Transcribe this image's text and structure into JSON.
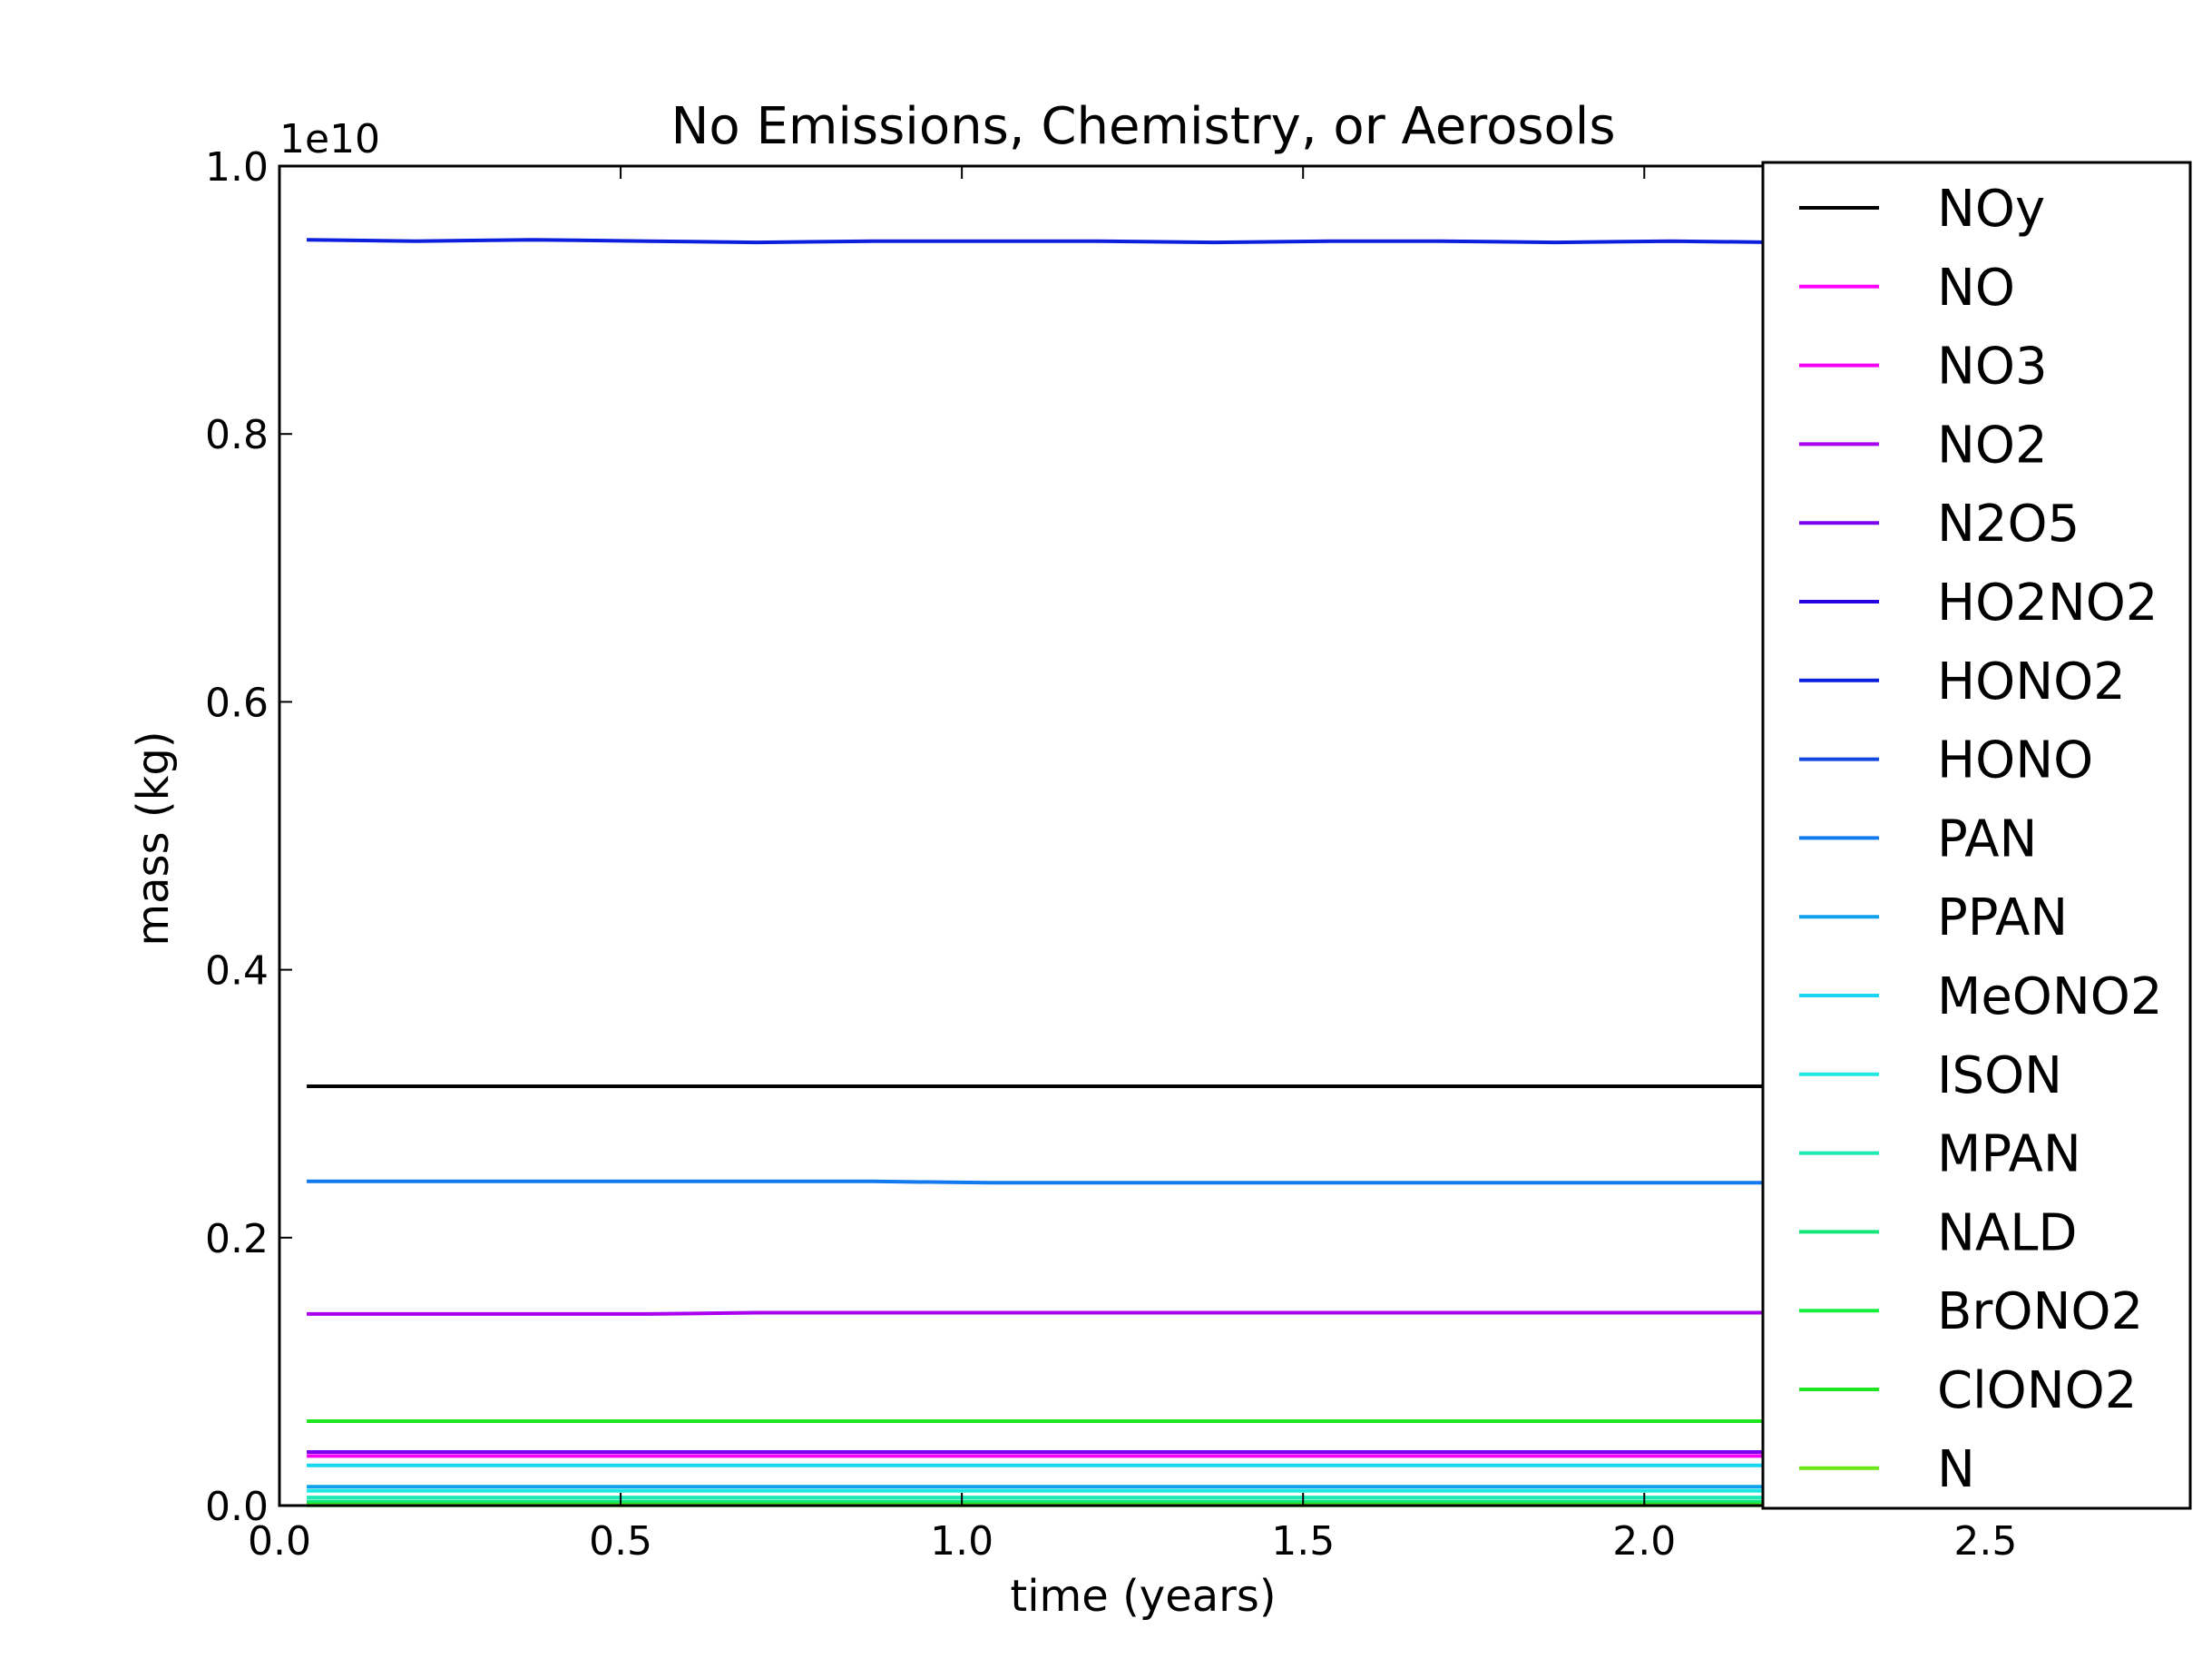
{
  "chart_data": {
    "type": "line",
    "title": "No Emissions, Chemistry, or Aerosols",
    "xlabel": "time (years)",
    "ylabel": "mass (kg)",
    "y_offset_label": "1e10",
    "xlim": [
      0.0,
      2.8
    ],
    "ylim": [
      0.0,
      1.0
    ],
    "grid": false,
    "legend_position": "upper-right",
    "x_ticks": [
      "0.0",
      "0.5",
      "1.0",
      "1.5",
      "2.0",
      "2.5"
    ],
    "y_ticks": [
      "0.0",
      "0.2",
      "0.4",
      "0.6",
      "0.8",
      "1.0"
    ],
    "x": [
      0.04,
      0.2,
      0.37,
      0.54,
      0.7,
      0.87,
      1.04,
      1.2,
      1.37,
      1.54,
      1.7,
      1.87,
      2.04,
      2.2
    ],
    "series": [
      {
        "name": "NOy",
        "color": "#000000",
        "values": [
          0.313,
          0.313,
          0.313,
          0.313,
          0.313,
          0.313,
          0.313,
          0.313,
          0.313,
          0.313,
          0.313,
          0.313,
          0.313,
          0.313
        ]
      },
      {
        "name": "NO",
        "color": "#ff00ff",
        "values": [
          0.0005,
          0.0005,
          0.0005,
          0.0005,
          0.0005,
          0.0005,
          0.0005,
          0.0005,
          0.0005,
          0.0005,
          0.0005,
          0.0005,
          0.0005,
          0.0005
        ]
      },
      {
        "name": "NO3",
        "color": "#f400f7",
        "values": [
          0.037,
          0.037,
          0.037,
          0.037,
          0.037,
          0.037,
          0.037,
          0.037,
          0.037,
          0.037,
          0.037,
          0.037,
          0.037,
          0.037
        ]
      },
      {
        "name": "NO2",
        "color": "#aa00ee",
        "values": [
          0.143,
          0.143,
          0.143,
          0.143,
          0.144,
          0.144,
          0.144,
          0.144,
          0.144,
          0.144,
          0.144,
          0.144,
          0.144,
          0.144
        ]
      },
      {
        "name": "N2O5",
        "color": "#7a00ee",
        "values": [
          0.04,
          0.04,
          0.04,
          0.04,
          0.04,
          0.04,
          0.04,
          0.04,
          0.04,
          0.04,
          0.04,
          0.04,
          0.04,
          0.04
        ]
      },
      {
        "name": "HO2NO2",
        "color": "#2800e6",
        "values": [
          0.002,
          0.002,
          0.002,
          0.002,
          0.002,
          0.002,
          0.002,
          0.002,
          0.002,
          0.002,
          0.002,
          0.002,
          0.002,
          0.002
        ]
      },
      {
        "name": "HONO2",
        "color": "#0c1fdd",
        "values": [
          0.945,
          0.944,
          0.945,
          0.944,
          0.943,
          0.944,
          0.944,
          0.944,
          0.943,
          0.944,
          0.944,
          0.943,
          0.944,
          0.943
        ]
      },
      {
        "name": "HONO",
        "color": "#1048e0",
        "values": [
          0.0015,
          0.0015,
          0.0015,
          0.0015,
          0.0015,
          0.0015,
          0.0015,
          0.0015,
          0.0015,
          0.0015,
          0.0015,
          0.0015,
          0.0015,
          0.0015
        ]
      },
      {
        "name": "PAN",
        "color": "#1279ee",
        "values": [
          0.242,
          0.242,
          0.242,
          0.242,
          0.242,
          0.242,
          0.241,
          0.241,
          0.241,
          0.241,
          0.241,
          0.241,
          0.241,
          0.241
        ]
      },
      {
        "name": "PPAN",
        "color": "#0fa1ee",
        "values": [
          0.014,
          0.014,
          0.014,
          0.014,
          0.014,
          0.014,
          0.014,
          0.014,
          0.014,
          0.014,
          0.014,
          0.014,
          0.014,
          0.014
        ]
      },
      {
        "name": "MeONO2",
        "color": "#18d6f2",
        "values": [
          0.03,
          0.03,
          0.03,
          0.03,
          0.03,
          0.03,
          0.03,
          0.03,
          0.03,
          0.03,
          0.03,
          0.03,
          0.03,
          0.03
        ]
      },
      {
        "name": "ISON",
        "color": "#1ee8e0",
        "values": [
          0.011,
          0.011,
          0.011,
          0.011,
          0.011,
          0.011,
          0.011,
          0.011,
          0.011,
          0.011,
          0.011,
          0.011,
          0.011,
          0.011
        ]
      },
      {
        "name": "MPAN",
        "color": "#1ee8b6",
        "values": [
          0.006,
          0.006,
          0.006,
          0.006,
          0.006,
          0.006,
          0.006,
          0.006,
          0.006,
          0.006,
          0.006,
          0.006,
          0.006,
          0.006
        ]
      },
      {
        "name": "NALD",
        "color": "#14e67a",
        "values": [
          0.003,
          0.003,
          0.003,
          0.003,
          0.003,
          0.003,
          0.003,
          0.003,
          0.003,
          0.003,
          0.003,
          0.003,
          0.003,
          0.003
        ]
      },
      {
        "name": "BrONO2",
        "color": "#14ee3c",
        "values": [
          0.001,
          0.001,
          0.001,
          0.001,
          0.001,
          0.001,
          0.001,
          0.001,
          0.001,
          0.001,
          0.001,
          0.001,
          0.001,
          0.001
        ]
      },
      {
        "name": "ClONO2",
        "color": "#1ee61e",
        "values": [
          0.063,
          0.063,
          0.063,
          0.063,
          0.063,
          0.063,
          0.063,
          0.063,
          0.063,
          0.063,
          0.063,
          0.063,
          0.063,
          0.063
        ]
      },
      {
        "name": "N",
        "color": "#6ae814",
        "values": [
          0.0002,
          0.0002,
          0.0002,
          0.0002,
          0.0002,
          0.0002,
          0.0002,
          0.0002,
          0.0002,
          0.0002,
          0.0002,
          0.0002,
          0.0002,
          0.0002
        ]
      }
    ]
  }
}
